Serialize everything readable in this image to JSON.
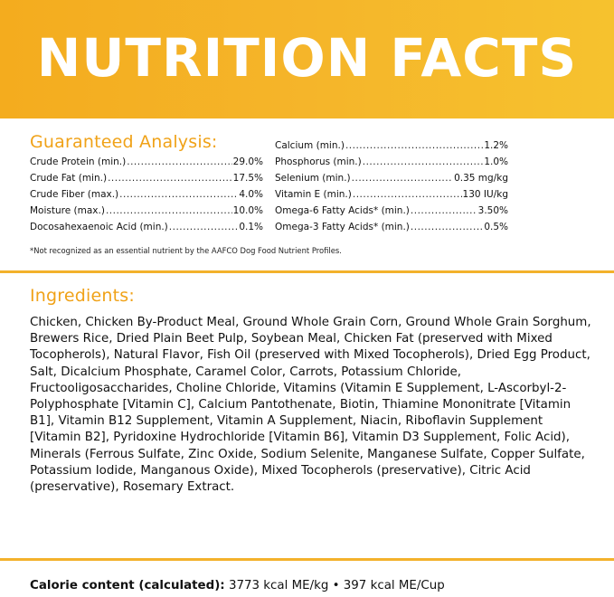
{
  "header": {
    "title": "NUTRITION FACTS"
  },
  "analysis": {
    "title": "Guaranteed Analysis:",
    "left": [
      {
        "label": "Crude Protein (min.)",
        "value": "29.0%"
      },
      {
        "label": "Crude Fat (min.)",
        "value": "17.5%"
      },
      {
        "label": "Crude Fiber (max.)",
        "value": "4.0%"
      },
      {
        "label": "Moisture (max.)",
        "value": "10.0%"
      },
      {
        "label": "Docosahexaenoic Acid (min.)",
        "value": "0.1%"
      }
    ],
    "right": [
      {
        "label": "Calcium (min.)",
        "value": "1.2%"
      },
      {
        "label": "Phosphorus (min.)",
        "value": "1.0%"
      },
      {
        "label": "Selenium (min.)",
        "value": "0.35 mg/kg"
      },
      {
        "label": "Vitamin E (min.)",
        "value": "130 IU/kg"
      },
      {
        "label": "Omega-6 Fatty Acids* (min.)",
        "value": "3.50%"
      },
      {
        "label": "Omega-3 Fatty Acids* (min.)",
        "value": "0.5%"
      }
    ],
    "footnote": "*Not recognized as an essential nutrient by the AAFCO Dog Food Nutrient Profiles."
  },
  "ingredients": {
    "title": "Ingredients:",
    "text": "Chicken, Chicken By-Product Meal, Ground Whole Grain Corn, Ground Whole Grain Sorghum, Brewers Rice, Dried Plain Beet Pulp, Soybean Meal, Chicken Fat (preserved with Mixed Tocopherols), Natural Flavor, Fish Oil (preserved with Mixed Tocopherols), Dried Egg Product, Salt, Dicalcium Phosphate, Caramel Color, Carrots, Potassium Chloride, Fructooligosaccharides, Choline Chloride, Vitamins (Vitamin E Supplement, L-Ascorbyl-2-Polyphosphate [Vitamin C], Calcium Pantothenate, Biotin, Thiamine Mononitrate [Vitamin B1], Vitamin B12 Supplement, Vitamin A Supplement, Niacin, Riboflavin Supplement [Vitamin B2], Pyridoxine Hydrochloride [Vitamin B6], Vitamin D3 Supplement, Folic Acid), Minerals (Ferrous Sulfate, Zinc Oxide, Sodium Selenite, Manganese Sulfate, Copper Sulfate, Potassium Iodide, Manganous Oxide), Mixed Tocopherols (preservative), Citric Acid (preservative), Rosemary Extract."
  },
  "calorie": {
    "label": "Calorie content (calculated):",
    "value": "3773 kcal ME/kg • 397 kcal ME/Cup"
  },
  "colors": {
    "accent": "#f3b12b",
    "heading": "#f0a218",
    "banner_text": "#ffffff"
  }
}
